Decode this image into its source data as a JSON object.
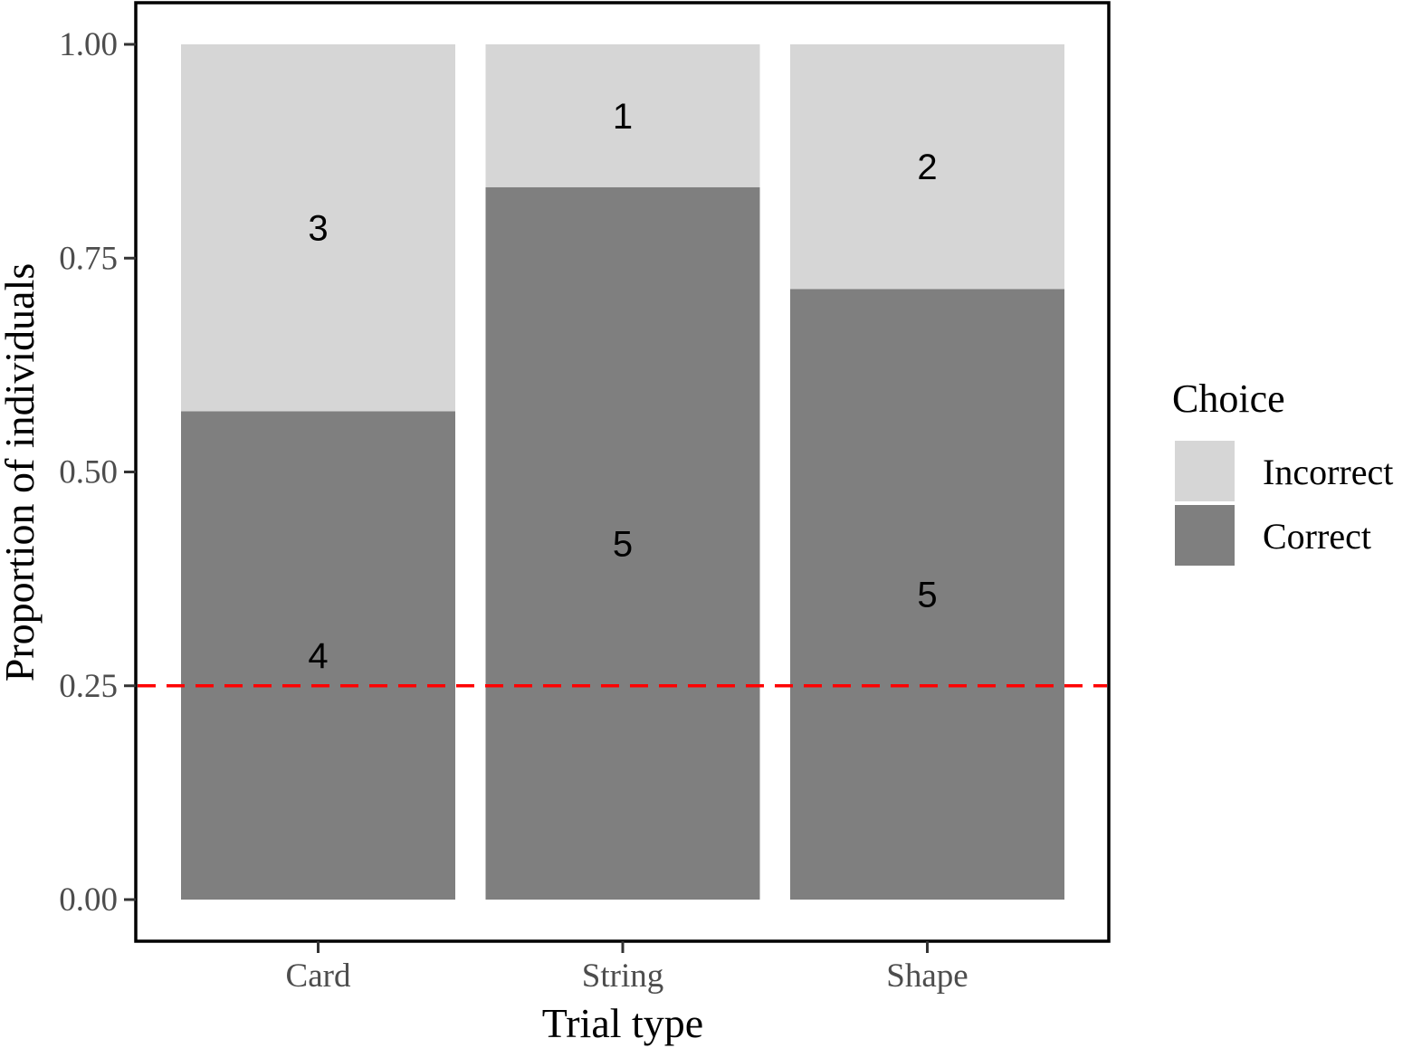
{
  "chart_data": {
    "type": "bar",
    "stacked": true,
    "normalized": true,
    "categories": [
      "Card",
      "String",
      "Shape"
    ],
    "series": [
      {
        "name": "Correct",
        "counts": [
          4,
          5,
          5
        ],
        "values": [
          0.571,
          0.833,
          0.714
        ],
        "color": "#7f7f7f"
      },
      {
        "name": "Incorrect",
        "counts": [
          3,
          1,
          2
        ],
        "values": [
          0.429,
          0.167,
          0.286
        ],
        "color": "#d6d6d6"
      }
    ],
    "xlabel": "Trial type",
    "ylabel": "Proportion of individuals",
    "ylim": [
      0,
      1
    ],
    "yticks": [
      "0.00",
      "0.25",
      "0.50",
      "0.75",
      "1.00"
    ],
    "reference_line": {
      "y": 0.25,
      "style": "dashed",
      "color": "#ff0000"
    },
    "legend": {
      "title": "Choice",
      "placement": "right",
      "entries": [
        {
          "label": "Incorrect",
          "color": "#d6d6d6"
        },
        {
          "label": "Correct",
          "color": "#7f7f7f"
        }
      ]
    },
    "grid": false
  }
}
